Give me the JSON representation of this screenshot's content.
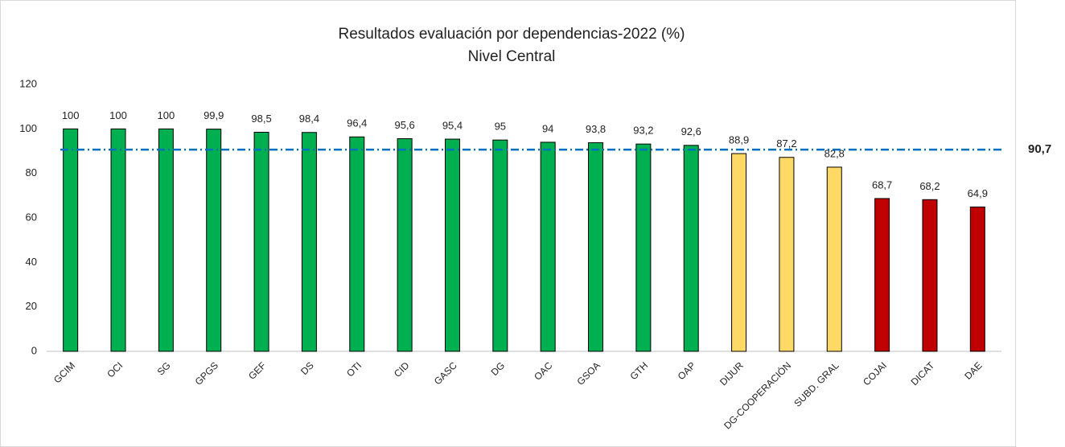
{
  "chart_data": {
    "type": "bar",
    "title": "Resultados evaluación por dependencias-2022 (%)",
    "subtitle": "Nivel Central",
    "categories": [
      "GCIM",
      "OCI",
      "SG",
      "GPGS",
      "GEF",
      "DS",
      "OTI",
      "CID",
      "GASC",
      "DG",
      "OAC",
      "GSOA",
      "GTH",
      "OAP",
      "DIJUR",
      "DG-COOPERACIÓN",
      "SUBD. GRAL",
      "COJAI",
      "DICAT",
      "DAE"
    ],
    "values": [
      100,
      100,
      100,
      99.9,
      98.5,
      98.4,
      96.4,
      95.6,
      95.4,
      95,
      94,
      93.8,
      93.2,
      92.6,
      88.9,
      87.2,
      82.8,
      68.7,
      68.2,
      64.9
    ],
    "value_labels": [
      "100",
      "100",
      "100",
      "99,9",
      "98,5",
      "98,4",
      "96,4",
      "95,6",
      "95,4",
      "95",
      "94",
      "93,8",
      "93,2",
      "92,6",
      "88,9",
      "87,2",
      "82,8",
      "68,7",
      "68,2",
      "64,9"
    ],
    "colors": [
      "#00b050",
      "#00b050",
      "#00b050",
      "#00b050",
      "#00b050",
      "#00b050",
      "#00b050",
      "#00b050",
      "#00b050",
      "#00b050",
      "#00b050",
      "#00b050",
      "#00b050",
      "#00b050",
      "#ffd966",
      "#ffd966",
      "#ffd966",
      "#c00000",
      "#c00000",
      "#c00000"
    ],
    "reference_line": {
      "value": 90.7,
      "label": "90,7",
      "color": "#0070c0"
    },
    "ylim": [
      0,
      120
    ],
    "yticks": [
      0,
      20,
      40,
      60,
      80,
      100,
      120
    ],
    "grid": false
  }
}
